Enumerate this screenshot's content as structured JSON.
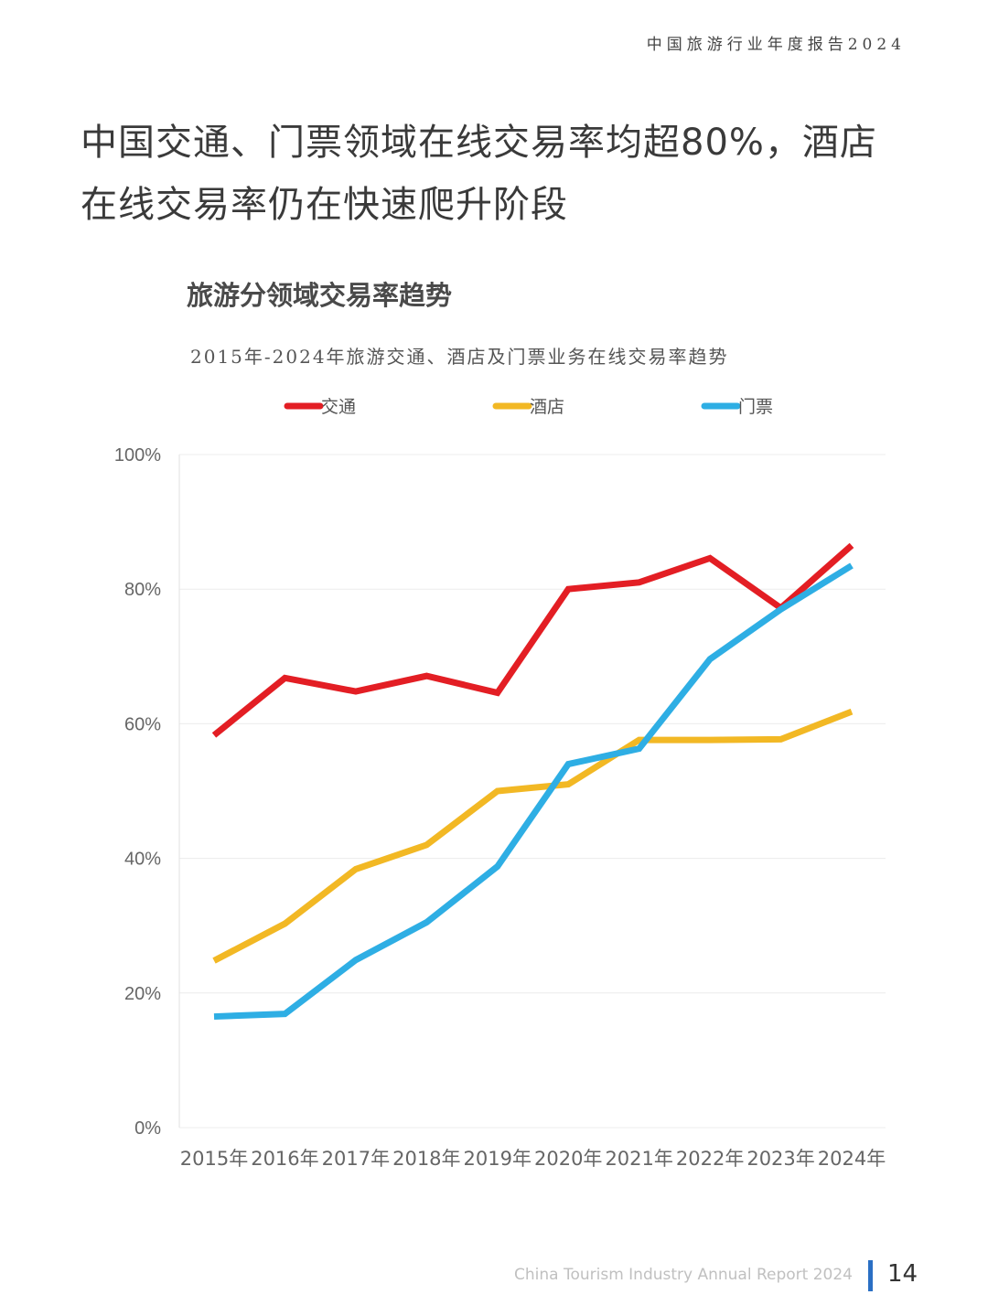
{
  "header": {
    "report_title": "中国旅游行业年度报告2024"
  },
  "page": {
    "title": "中国交通、门票领域在线交易率均超80%，酒店在线交易率仍在快速爬升阶段"
  },
  "chart_data": {
    "type": "line",
    "title": "旅游分领域交易率趋势",
    "subtitle": "2015年-2024年旅游交通、酒店及门票业务在线交易率趋势",
    "categories": [
      "2015年",
      "2016年",
      "2017年",
      "2018年",
      "2019年",
      "2020年",
      "2021年",
      "2022年",
      "2023年",
      "2024年"
    ],
    "ylim": [
      0,
      100
    ],
    "yticks": [
      0,
      20,
      40,
      60,
      80,
      100
    ],
    "ytick_labels": [
      "0%",
      "20%",
      "40%",
      "60%",
      "80%",
      "100%"
    ],
    "grid": true,
    "legend_position": "top",
    "series": [
      {
        "name": "交通",
        "color": "#e31e24",
        "values": [
          58.3,
          66.8,
          64.8,
          67.1,
          64.6,
          80.0,
          81.0,
          84.6,
          77.2,
          86.5
        ]
      },
      {
        "name": "酒店",
        "color": "#f2b824",
        "values": [
          24.8,
          30.3,
          38.4,
          42.0,
          50.0,
          51.0,
          57.6,
          57.6,
          57.7,
          61.8
        ]
      },
      {
        "name": "门票",
        "color": "#2eaee4",
        "values": [
          16.5,
          16.9,
          24.9,
          30.5,
          38.8,
          54.0,
          56.3,
          69.6,
          77.0,
          83.5
        ]
      }
    ]
  },
  "footer": {
    "report_en": "China Tourism Industry Annual Report 2024",
    "page_number": "14"
  }
}
